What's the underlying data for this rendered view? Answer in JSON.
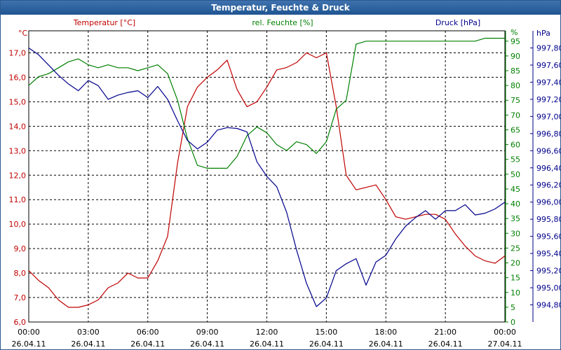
{
  "chart_data": {
    "type": "line",
    "title": "Temperatur, Feuchte & Druck",
    "x_ticks": [
      "00:00",
      "03:00",
      "06:00",
      "09:00",
      "12:00",
      "15:00",
      "18:00",
      "21:00",
      "00:00"
    ],
    "x_dates": [
      "26.04.11",
      "26.04.11",
      "26.04.11",
      "26.04.11",
      "26.04.11",
      "26.04.11",
      "26.04.11",
      "26.04.11",
      "27.04.11"
    ],
    "x_range_hours": [
      0,
      24
    ],
    "axes": {
      "left": {
        "unit": "°C",
        "range": [
          6.0,
          17.9
        ],
        "ticks": [
          "6,0",
          "7,0",
          "8,0",
          "9,0",
          "10,0",
          "11,0",
          "12,0",
          "13,0",
          "14,0",
          "15,0",
          "16,0",
          "17,0"
        ],
        "tick_values": [
          6,
          7,
          8,
          9,
          10,
          11,
          12,
          13,
          14,
          15,
          16,
          17
        ],
        "color": "#c00000"
      },
      "middle": {
        "unit": "%",
        "range": [
          0,
          98.5
        ],
        "ticks": [
          "0",
          "5",
          "10",
          "15",
          "20",
          "25",
          "30",
          "35",
          "40",
          "45",
          "50",
          "55",
          "60",
          "65",
          "70",
          "75",
          "80",
          "85",
          "90",
          "95"
        ],
        "tick_values": [
          0,
          5,
          10,
          15,
          20,
          25,
          30,
          35,
          40,
          45,
          50,
          55,
          60,
          65,
          70,
          75,
          80,
          85,
          90,
          95
        ],
        "color": "#008000"
      },
      "right": {
        "unit": "hPa",
        "range": [
          994.6,
          998.0
        ],
        "ticks": [
          "994,80",
          "995,00",
          "995,20",
          "995,40",
          "995,60",
          "995,80",
          "996,00",
          "996,20",
          "996,40",
          "996,60",
          "996,80",
          "997,00",
          "997,20",
          "997,40",
          "997,60",
          "997,80"
        ],
        "tick_values": [
          994.8,
          995.0,
          995.2,
          995.4,
          995.6,
          995.8,
          996.0,
          996.2,
          996.4,
          996.6,
          996.8,
          997.0,
          997.2,
          997.4,
          997.6,
          997.8
        ],
        "color": "#00008b"
      }
    },
    "series": [
      {
        "name": "Temperatur [°C]",
        "axis": "left",
        "color": "#c00000",
        "x": [
          0,
          0.5,
          1,
          1.5,
          2,
          2.5,
          3,
          3.5,
          4,
          4.5,
          5,
          5.5,
          6,
          6.5,
          7,
          7.5,
          8,
          8.5,
          9,
          9.5,
          10,
          10.5,
          11,
          11.5,
          12,
          12.5,
          13,
          13.5,
          14,
          14.5,
          15,
          15.5,
          16,
          16.5,
          17,
          17.5,
          18,
          18.5,
          19,
          19.5,
          20,
          20.5,
          21,
          21.5,
          22,
          22.5,
          23,
          23.5,
          24
        ],
        "values": [
          8.1,
          7.7,
          7.4,
          6.9,
          6.6,
          6.6,
          6.7,
          6.9,
          7.4,
          7.6,
          8.0,
          7.8,
          7.8,
          8.5,
          9.5,
          12.5,
          14.8,
          15.6,
          16.0,
          16.3,
          16.7,
          15.5,
          14.8,
          15.0,
          15.6,
          16.3,
          16.4,
          16.6,
          17.0,
          16.8,
          17.0,
          14.8,
          12.0,
          11.4,
          11.5,
          11.6,
          11.0,
          10.3,
          10.2,
          10.3,
          10.4,
          10.4,
          10.2,
          9.6,
          9.1,
          8.7,
          8.5,
          8.4,
          8.7
        ]
      },
      {
        "name": "rel. Feuchte [%]",
        "axis": "middle",
        "color": "#008000",
        "x": [
          0,
          0.5,
          1,
          1.5,
          2,
          2.5,
          3,
          3.5,
          4,
          4.5,
          5,
          5.5,
          6,
          6.5,
          7,
          7.5,
          8,
          8.5,
          9,
          9.5,
          10,
          10.5,
          11,
          11.5,
          12,
          12.5,
          13,
          13.5,
          14,
          14.5,
          15,
          15.5,
          16,
          16.5,
          17,
          17.5,
          18,
          18.5,
          19,
          19.5,
          20,
          20.5,
          21,
          21.5,
          22,
          22.5,
          23,
          23.5,
          24
        ],
        "values": [
          80,
          83,
          84,
          86,
          88,
          89,
          87,
          86,
          87,
          86,
          86,
          85,
          86,
          87,
          84,
          75,
          62,
          53,
          52,
          52,
          52,
          56,
          63,
          66,
          64,
          60,
          58,
          61,
          60,
          57,
          61,
          72,
          75,
          94,
          95,
          95,
          95,
          95,
          95,
          95,
          95,
          95,
          95,
          95,
          95,
          95,
          96,
          96,
          96
        ]
      },
      {
        "name": "Druck [hPa]",
        "axis": "right",
        "color": "#00008b",
        "x": [
          0,
          0.5,
          1,
          1.5,
          2,
          2.5,
          3,
          3.5,
          4,
          4.5,
          5,
          5.5,
          6,
          6.5,
          7,
          7.5,
          8,
          8.5,
          9,
          9.5,
          10,
          10.5,
          11,
          11.5,
          12,
          12.5,
          13,
          13.5,
          14,
          14.5,
          15,
          15.5,
          16,
          16.5,
          17,
          17.5,
          18,
          18.5,
          19,
          19.5,
          20,
          20.5,
          21,
          21.5,
          22,
          22.5,
          23,
          23.5,
          24
        ],
        "values": [
          997.8,
          997.72,
          997.6,
          997.48,
          997.38,
          997.3,
          997.42,
          997.36,
          997.2,
          997.25,
          997.28,
          997.3,
          997.22,
          997.35,
          997.2,
          996.95,
          996.72,
          996.62,
          996.7,
          996.84,
          996.87,
          996.86,
          996.82,
          996.47,
          996.3,
          996.18,
          995.88,
          995.44,
          995.05,
          994.78,
          994.88,
          995.2,
          995.28,
          995.34,
          995.03,
          995.3,
          995.38,
          995.57,
          995.72,
          995.82,
          995.9,
          995.8,
          995.9,
          995.9,
          995.97,
          995.85,
          995.87,
          995.92,
          996.0
        ]
      }
    ],
    "grid": true
  }
}
